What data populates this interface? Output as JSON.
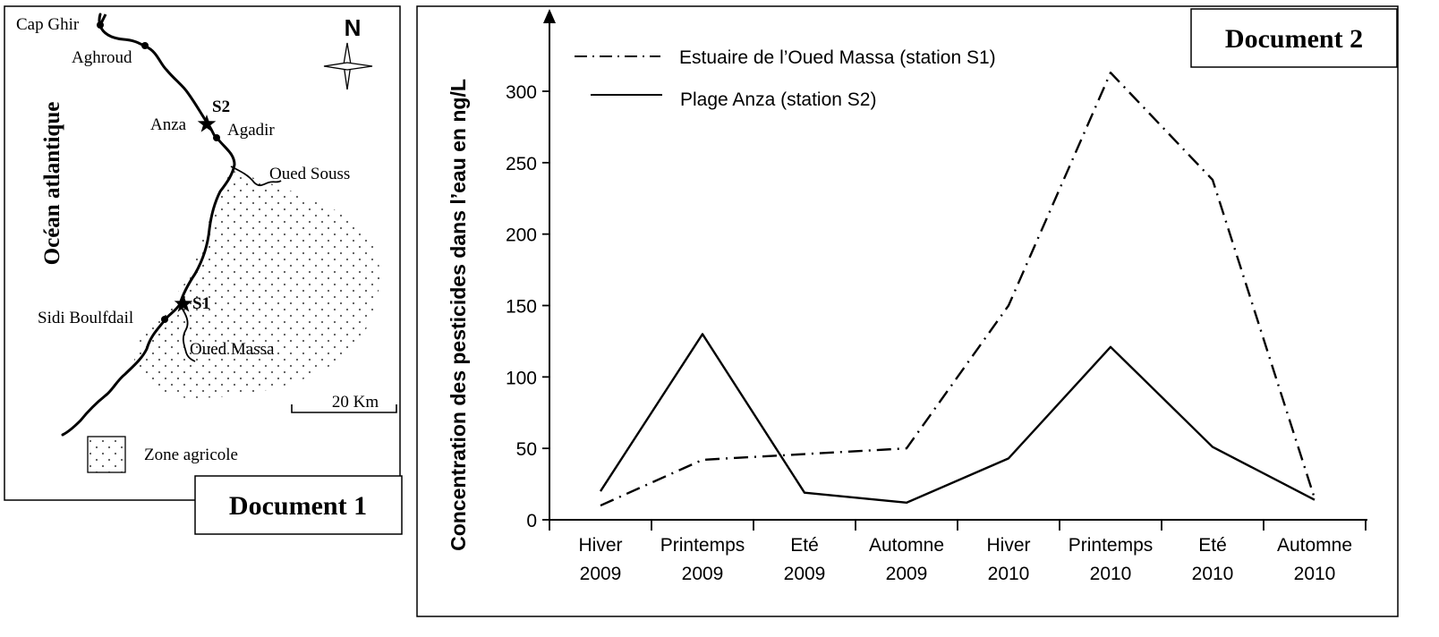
{
  "document1": {
    "title": "Document 1",
    "ocean_label": "Océan atlantique",
    "north_label": "N",
    "places": [
      "Cap Ghir",
      "Aghroud",
      "Anza",
      "Agadir",
      "Sidi Boulfdail"
    ],
    "rivers": [
      "Oued Souss",
      "Oued Massa"
    ],
    "stations": [
      "S1",
      "S2"
    ],
    "scale_label": "20 Km",
    "legend_label": "Zone agricole"
  },
  "document2": {
    "title": "Document 2"
  },
  "chart_data": {
    "type": "line",
    "title": "",
    "xlabel": "",
    "ylabel": "Concentration des pesticides dans l’eau en ng/L",
    "categories": [
      [
        "Hiver",
        "2009"
      ],
      [
        "Printemps",
        "2009"
      ],
      [
        "Eté",
        "2009"
      ],
      [
        "Automne",
        "2009"
      ],
      [
        "Hiver",
        "2010"
      ],
      [
        "Printemps",
        "2010"
      ],
      [
        "Eté",
        "2010"
      ],
      [
        "Automne",
        "2010"
      ]
    ],
    "ylim": [
      0,
      300
    ],
    "yticks": [
      0,
      50,
      100,
      150,
      200,
      250,
      300
    ],
    "grid": false,
    "legend_position": "top-left",
    "series": [
      {
        "name": "Estuaire de l’Oued Massa (station S1)",
        "style": "dash-dot",
        "color": "#000000",
        "values": [
          10,
          42,
          46,
          50,
          150,
          313,
          238,
          15
        ]
      },
      {
        "name": "Plage Anza (station S2)",
        "style": "solid",
        "color": "#000000",
        "values": [
          20,
          130,
          19,
          12,
          43,
          121,
          51,
          14
        ]
      }
    ]
  }
}
